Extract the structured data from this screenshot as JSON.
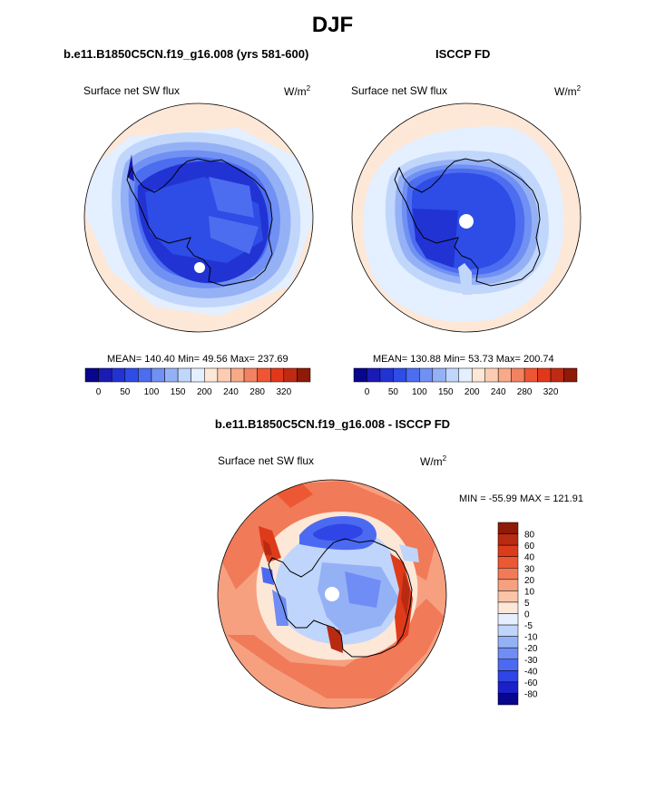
{
  "title": "DJF",
  "colors": {
    "abs_scale": [
      "#07068c",
      "#1a1bb4",
      "#2233d4",
      "#2e4ce6",
      "#4d6df0",
      "#7090f3",
      "#95b1f6",
      "#c1d6fb",
      "#e4efff",
      "#fde7d7",
      "#fccdb2",
      "#f8a987",
      "#f38261",
      "#ee5633",
      "#e2381a",
      "#c02a12",
      "#8e1a08"
    ],
    "diff_scale": [
      "#07068c",
      "#1a21c8",
      "#2f45e6",
      "#4c6af1",
      "#6f8df4",
      "#95b1f6",
      "#c0d5fb",
      "#e5efff",
      "#fde7d7",
      "#fac4a8",
      "#f6a080",
      "#f17a58",
      "#ec5833",
      "#de3b1b",
      "#b92a12",
      "#8e1a08"
    ],
    "land_outline": "#000000"
  },
  "panels": [
    {
      "id": "model",
      "title": "b.e11.B1850C5CN.f19_g16.008 (yrs 581-600)",
      "variable": "Surface net SW flux",
      "units_base": "W/m",
      "units_sup": "2",
      "stats": "MEAN= 140.40  Min=  49.56  Max= 237.69",
      "colorbar_labels": [
        "0",
        "50",
        "100",
        "150",
        "200",
        "240",
        "280",
        "320"
      ]
    },
    {
      "id": "obs",
      "title": "ISCCP FD",
      "variable": "Surface net SW flux",
      "units_base": "W/m",
      "units_sup": "2",
      "stats": "MEAN= 130.88  Min=  53.73  Max= 200.74",
      "colorbar_labels": [
        "0",
        "50",
        "100",
        "150",
        "200",
        "240",
        "280",
        "320"
      ]
    }
  ],
  "diff_panel": {
    "title": "b.e11.B1850C5CN.f19_g16.008 - ISCCP FD",
    "variable": "Surface net SW flux",
    "units_base": "W/m",
    "units_sup": "2",
    "stats": "MIN = -55.99 MAX = 121.91",
    "colorbar_labels": [
      "80",
      "60",
      "40",
      "30",
      "20",
      "10",
      "5",
      "0",
      "-5",
      "-10",
      "-20",
      "-30",
      "-40",
      "-60",
      "-80"
    ]
  }
}
